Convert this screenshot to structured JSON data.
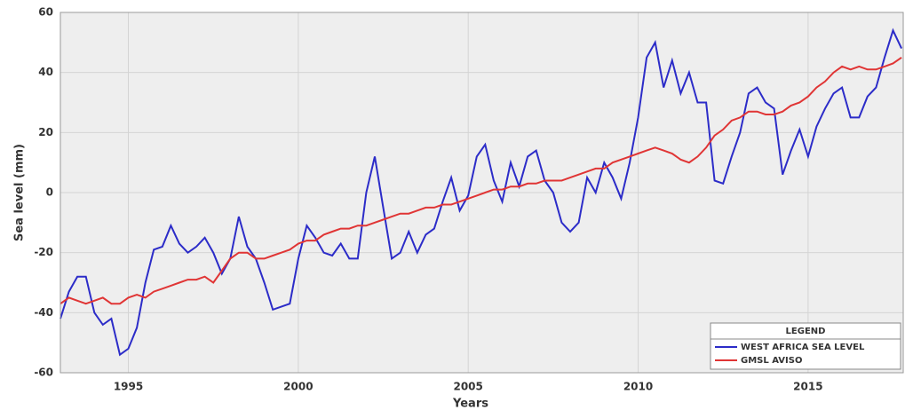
{
  "chart_data": {
    "type": "line",
    "x_label": "Years",
    "y_label": "Sea level (mm)",
    "legend_title": "LEGEND",
    "legend": "lower right",
    "grid": true,
    "xlim": [
      1993,
      2017.8
    ],
    "xticks": [
      1995,
      2000,
      2005,
      2010,
      2015
    ],
    "ylim": [
      -60,
      60
    ],
    "yticks": [
      -60,
      -40,
      -20,
      0,
      20,
      40,
      60
    ],
    "x": [
      1993,
      1993.25,
      1993.5,
      1993.75,
      1994,
      1994.25,
      1994.5,
      1994.75,
      1995,
      1995.25,
      1995.5,
      1995.75,
      1996,
      1996.25,
      1996.5,
      1996.75,
      1997,
      1997.25,
      1997.5,
      1997.75,
      1998,
      1998.25,
      1998.5,
      1998.75,
      1999,
      1999.25,
      1999.5,
      1999.75,
      2000,
      2000.25,
      2000.5,
      2000.75,
      2001,
      2001.25,
      2001.5,
      2001.75,
      2002,
      2002.25,
      2002.5,
      2002.75,
      2003,
      2003.25,
      2003.5,
      2003.75,
      2004,
      2004.25,
      2004.5,
      2004.75,
      2005,
      2005.25,
      2005.5,
      2005.75,
      2006,
      2006.25,
      2006.5,
      2006.75,
      2007,
      2007.25,
      2007.5,
      2007.75,
      2008,
      2008.25,
      2008.5,
      2008.75,
      2009,
      2009.25,
      2009.5,
      2009.75,
      2010,
      2010.25,
      2010.5,
      2010.75,
      2011,
      2011.25,
      2011.5,
      2011.75,
      2012,
      2012.25,
      2012.5,
      2012.75,
      2013,
      2013.25,
      2013.5,
      2013.75,
      2014,
      2014.25,
      2014.5,
      2014.75,
      2015,
      2015.25,
      2015.5,
      2015.75,
      2016,
      2016.25,
      2016.5,
      2016.75,
      2017,
      2017.25,
      2017.5,
      2017.75
    ],
    "series": [
      {
        "name": "WEST AFRICA SEA LEVEL",
        "color": "#2c2cc8",
        "values": [
          -42,
          -33,
          -28,
          -28,
          -40,
          -44,
          -42,
          -54,
          -52,
          -45,
          -30,
          -19,
          -18,
          -11,
          -17,
          -20,
          -18,
          -15,
          -20,
          -27,
          -22,
          -8,
          -18,
          -22,
          -30,
          -39,
          -38,
          -37,
          -22,
          -11,
          -15,
          -20,
          -21,
          -17,
          -22,
          -22,
          0,
          12,
          -5,
          -22,
          -20,
          -13,
          -20,
          -14,
          -12,
          -3,
          5,
          -6,
          -1,
          12,
          16,
          4,
          -3,
          10,
          2,
          12,
          14,
          4,
          0,
          -10,
          -13,
          -10,
          5,
          0,
          10,
          5,
          -2,
          10,
          25,
          45,
          50,
          35,
          44,
          33,
          40,
          30,
          30,
          4,
          3,
          12,
          20,
          33,
          35,
          30,
          28,
          6,
          14,
          21,
          12,
          22,
          28,
          33,
          35,
          25,
          25,
          32,
          35,
          45,
          54,
          48
        ]
      },
      {
        "name": "GMSL AVISO",
        "color": "#e03535",
        "values": [
          -37,
          -35,
          -36,
          -37,
          -36,
          -35,
          -37,
          -37,
          -35,
          -34,
          -35,
          -33,
          -32,
          -31,
          -30,
          -29,
          -29,
          -28,
          -30,
          -26,
          -22,
          -20,
          -20,
          -22,
          -22,
          -21,
          -20,
          -19,
          -17,
          -16,
          -16,
          -14,
          -13,
          -12,
          -12,
          -11,
          -11,
          -10,
          -9,
          -8,
          -7,
          -7,
          -6,
          -5,
          -5,
          -4,
          -4,
          -3,
          -2,
          -1,
          0,
          1,
          1,
          2,
          2,
          3,
          3,
          4,
          4,
          4,
          5,
          6,
          7,
          8,
          8,
          10,
          11,
          12,
          13,
          14,
          15,
          14,
          13,
          11,
          10,
          12,
          15,
          19,
          21,
          24,
          25,
          27,
          27,
          26,
          26,
          27,
          29,
          30,
          32,
          35,
          37,
          40,
          42,
          41,
          42,
          41,
          41,
          42,
          43,
          45
        ]
      }
    ]
  }
}
